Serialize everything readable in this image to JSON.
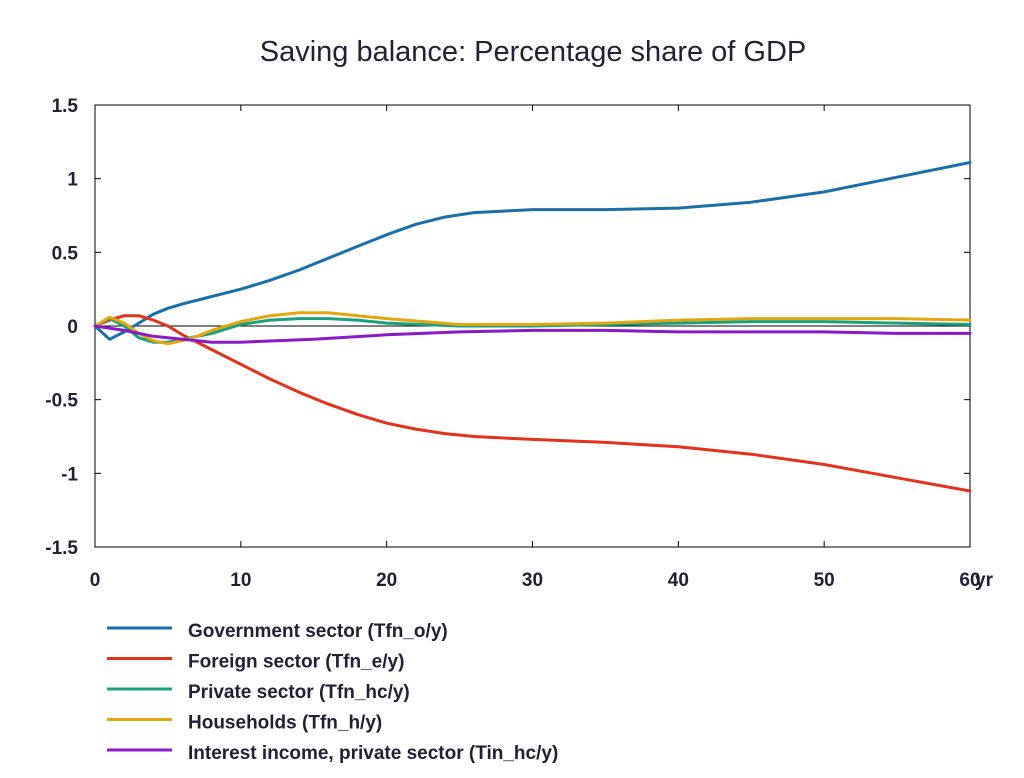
{
  "chart_data": {
    "type": "line",
    "title": "Saving balance: Percentage share of GDP",
    "x_unit_label": "yr",
    "xlim": [
      0,
      60
    ],
    "ylim": [
      -1.5,
      1.5
    ],
    "x_ticks": [
      0,
      10,
      20,
      30,
      40,
      50,
      60
    ],
    "y_ticks": [
      -1.5,
      -1,
      -0.5,
      0,
      0.5,
      1,
      1.5
    ],
    "x_tick_labels": [
      "0",
      "10",
      "20",
      "30",
      "40",
      "50",
      "60"
    ],
    "y_tick_labels": [
      "-1.5",
      "-1",
      "-0.5",
      "0",
      "0.5",
      "1",
      "1.5"
    ],
    "grid": false,
    "zero_line": true,
    "legend_position": "bottom",
    "series": [
      {
        "name": "Government sector (Tfn_o/y)",
        "color": "#1a6fa8",
        "x": [
          0,
          1,
          2,
          3,
          4,
          5,
          6,
          8,
          10,
          12,
          14,
          16,
          18,
          20,
          22,
          24,
          26,
          28,
          30,
          35,
          40,
          45,
          50,
          55,
          60
        ],
        "y": [
          0,
          -0.09,
          -0.04,
          0.02,
          0.08,
          0.12,
          0.15,
          0.2,
          0.25,
          0.31,
          0.38,
          0.46,
          0.54,
          0.62,
          0.69,
          0.74,
          0.77,
          0.78,
          0.79,
          0.79,
          0.8,
          0.84,
          0.91,
          1.01,
          1.11
        ]
      },
      {
        "name": "Foreign sector (Tfn_e/y)",
        "color": "#e2311d",
        "x": [
          0,
          1,
          2,
          3,
          4,
          5,
          6,
          8,
          10,
          12,
          14,
          16,
          18,
          20,
          22,
          24,
          26,
          28,
          30,
          35,
          40,
          45,
          50,
          55,
          60
        ],
        "y": [
          0,
          0.04,
          0.07,
          0.07,
          0.04,
          0.0,
          -0.06,
          -0.16,
          -0.26,
          -0.36,
          -0.45,
          -0.53,
          -0.6,
          -0.66,
          -0.7,
          -0.73,
          -0.75,
          -0.76,
          -0.77,
          -0.79,
          -0.82,
          -0.87,
          -0.94,
          -1.03,
          -1.12
        ]
      },
      {
        "name": "Private sector (Tfn_hc/y)",
        "color": "#19a07e",
        "x": [
          0,
          1,
          2,
          3,
          4,
          5,
          6,
          8,
          10,
          12,
          14,
          16,
          18,
          20,
          25,
          30,
          35,
          40,
          45,
          50,
          55,
          60
        ],
        "y": [
          0,
          0.05,
          0.0,
          -0.08,
          -0.11,
          -0.11,
          -0.09,
          -0.05,
          0.01,
          0.04,
          0.05,
          0.05,
          0.04,
          0.02,
          0.0,
          0.0,
          0.01,
          0.02,
          0.03,
          0.03,
          0.02,
          0.01
        ]
      },
      {
        "name": "Households (Tfn_h/y)",
        "color": "#e3a60f",
        "x": [
          0,
          1,
          2,
          3,
          4,
          5,
          6,
          7,
          8,
          10,
          12,
          14,
          16,
          18,
          20,
          25,
          30,
          35,
          40,
          45,
          50,
          55,
          60
        ],
        "y": [
          0,
          0.06,
          0.02,
          -0.05,
          -0.1,
          -0.12,
          -0.1,
          -0.07,
          -0.03,
          0.03,
          0.07,
          0.09,
          0.09,
          0.07,
          0.05,
          0.01,
          0.01,
          0.02,
          0.04,
          0.05,
          0.05,
          0.05,
          0.04
        ]
      },
      {
        "name": "Interest income, private sector (Tin_hc/y)",
        "color": "#8a1ac7",
        "x": [
          0,
          2,
          4,
          6,
          8,
          10,
          15,
          20,
          25,
          30,
          35,
          40,
          45,
          50,
          55,
          60
        ],
        "y": [
          0,
          -0.03,
          -0.07,
          -0.09,
          -0.11,
          -0.11,
          -0.09,
          -0.06,
          -0.04,
          -0.03,
          -0.03,
          -0.04,
          -0.04,
          -0.04,
          -0.05,
          -0.05
        ]
      }
    ]
  }
}
